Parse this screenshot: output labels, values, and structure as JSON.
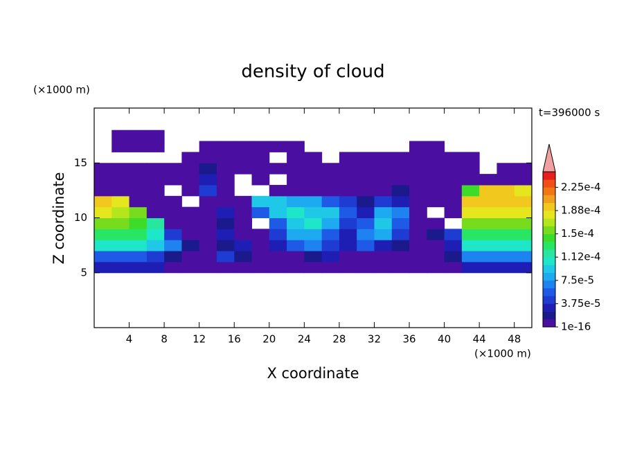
{
  "chart_data": {
    "type": "contour",
    "title": "density of cloud",
    "x_label": "X coordinate",
    "y_label": "Z coordinate",
    "x_unit": "(×1000 m)",
    "y_unit": "(×1000 m)",
    "time_label": "t=396000 s",
    "xlim": [
      0,
      50
    ],
    "ylim": [
      0,
      20
    ],
    "xticks": [
      4,
      8,
      12,
      16,
      20,
      24,
      28,
      32,
      36,
      40,
      44,
      48
    ],
    "yticks": [
      5,
      10,
      15
    ],
    "x": [
      1,
      3,
      5,
      7,
      9,
      11,
      13,
      15,
      17,
      19,
      21,
      23,
      25,
      27,
      29,
      31,
      33,
      35,
      37,
      39,
      41,
      43,
      45,
      47,
      49
    ],
    "z": [
      5.5,
      6.5,
      7.5,
      8.5,
      9.5,
      10.5,
      11.5,
      12.5,
      13.5,
      14.5,
      15.5,
      16.5,
      17.5
    ],
    "values": [
      [
        3e-05,
        3e-05,
        3e-05,
        3e-05,
        1e-05,
        5e-06,
        5e-06,
        5e-06,
        5e-06,
        5e-06,
        5e-06,
        5e-06,
        5e-06,
        5e-06,
        5e-06,
        5e-06,
        5e-06,
        5e-06,
        5e-06,
        5e-06,
        1e-05,
        3e-05,
        3e-05,
        3e-05,
        3e-05
      ],
      [
        6e-05,
        6e-05,
        6e-05,
        5e-05,
        2e-05,
        5e-06,
        5e-06,
        4e-05,
        2e-05,
        5e-06,
        5e-06,
        5e-06,
        2e-05,
        3e-05,
        5e-06,
        5e-06,
        5e-06,
        5e-06,
        5e-06,
        1e-05,
        2e-05,
        7e-05,
        7e-05,
        7e-05,
        7e-05
      ],
      [
        0.00011,
        0.00011,
        0.00011,
        9e-05,
        7e-05,
        2e-05,
        5e-06,
        2e-05,
        3e-05,
        5e-06,
        3e-05,
        6e-05,
        7e-05,
        4e-05,
        3e-05,
        6e-05,
        3e-05,
        2e-05,
        5e-06,
        5e-06,
        3e-05,
        0.00011,
        0.00011,
        0.00011,
        0.00011
      ],
      [
        0.000135,
        0.000135,
        0.00013,
        0.00011,
        4e-05,
        5e-06,
        5e-06,
        3e-05,
        5e-06,
        5e-06,
        4e-05,
        8e-05,
        8e-05,
        6e-05,
        3e-05,
        7e-05,
        8e-05,
        4e-05,
        5e-06,
        2e-05,
        4e-05,
        0.000135,
        0.000135,
        0.000135,
        0.000135
      ],
      [
        0.00016,
        0.000155,
        0.00015,
        0.00012,
        5e-06,
        5e-06,
        5e-06,
        2e-05,
        5e-06,
        null,
        6e-05,
        9e-05,
        0.000105,
        8e-05,
        5e-05,
        6e-05,
        9e-05,
        6e-05,
        5e-06,
        5e-06,
        null,
        0.00016,
        0.00016,
        0.00016,
        0.00016
      ],
      [
        0.00018,
        0.000175,
        0.00016,
        5e-06,
        5e-06,
        5e-06,
        5e-06,
        3e-05,
        5e-06,
        6e-05,
        9e-05,
        0.000105,
        0.0001,
        0.0001,
        6e-05,
        3e-05,
        8e-05,
        7e-05,
        5e-06,
        null,
        5e-06,
        0.000185,
        0.000185,
        0.000185,
        0.000185
      ],
      [
        0.00019,
        0.00018,
        5e-06,
        5e-06,
        5e-06,
        null,
        5e-06,
        5e-06,
        5e-06,
        0.0001,
        9e-05,
        8e-05,
        8e-05,
        6e-05,
        4e-05,
        2e-05,
        5e-05,
        3e-05,
        5e-06,
        5e-06,
        5e-06,
        0.000195,
        0.0002,
        0.000195,
        0.00019
      ],
      [
        5e-06,
        5e-06,
        5e-06,
        5e-06,
        null,
        5e-06,
        4e-05,
        5e-06,
        null,
        null,
        5e-06,
        5e-06,
        5e-06,
        5e-06,
        5e-06,
        5e-06,
        5e-06,
        2e-05,
        5e-06,
        5e-06,
        5e-06,
        0.00014,
        0.00019,
        0.00019,
        0.00018
      ],
      [
        5e-06,
        5e-06,
        5e-06,
        5e-06,
        5e-06,
        5e-06,
        3e-05,
        5e-06,
        null,
        5e-06,
        null,
        5e-06,
        5e-06,
        5e-06,
        5e-06,
        5e-06,
        5e-06,
        5e-06,
        5e-06,
        5e-06,
        5e-06,
        5e-06,
        5e-06,
        5e-06,
        5e-06
      ],
      [
        5e-06,
        5e-06,
        5e-06,
        5e-06,
        5e-06,
        5e-06,
        2e-05,
        5e-06,
        5e-06,
        5e-06,
        5e-06,
        5e-06,
        5e-06,
        5e-06,
        5e-06,
        5e-06,
        5e-06,
        5e-06,
        5e-06,
        5e-06,
        5e-06,
        5e-06,
        null,
        5e-06,
        5e-06
      ],
      [
        null,
        null,
        null,
        null,
        null,
        5e-06,
        5e-06,
        5e-06,
        5e-06,
        5e-06,
        null,
        5e-06,
        5e-06,
        null,
        5e-06,
        5e-06,
        5e-06,
        5e-06,
        5e-06,
        5e-06,
        5e-06,
        5e-06,
        null,
        null,
        null
      ],
      [
        null,
        5e-06,
        5e-06,
        5e-06,
        null,
        null,
        5e-06,
        5e-06,
        5e-06,
        5e-06,
        5e-06,
        5e-06,
        null,
        null,
        null,
        null,
        null,
        null,
        5e-06,
        5e-06,
        null,
        null,
        null,
        null,
        null
      ],
      [
        null,
        5e-06,
        5e-06,
        5e-06,
        null,
        null,
        null,
        null,
        null,
        null,
        null,
        null,
        null,
        null,
        null,
        null,
        null,
        null,
        null,
        null,
        null,
        null,
        null,
        null,
        null
      ]
    ],
    "clim": [
      1e-16,
      0.00025
    ],
    "colors": [
      "#4a0fa0",
      "#1a1a8c",
      "#1e1eb4",
      "#1e3cd2",
      "#1e5ae6",
      "#1e82f0",
      "#1eaaf0",
      "#1ec8e6",
      "#1ee6c8",
      "#28e6a0",
      "#28e664",
      "#3cdc28",
      "#78dc1e",
      "#b4e61e",
      "#e6e61e",
      "#f0c81e",
      "#f0a01e",
      "#f07814",
      "#f05014",
      "#e61e1e"
    ],
    "extend_color": "#f0a0a0",
    "cticks": [
      1e-16,
      {
        "value": 3.75e-05,
        "label": "3.75e-5"
      },
      {
        "value": 7.5e-05,
        "label": "7.5e-5"
      },
      {
        "value": 0.0001125,
        "label": "1.12e-4"
      },
      {
        "value": 0.00015,
        "label": "1.5e-4"
      },
      {
        "value": 0.0001875,
        "label": "1.88e-4"
      },
      {
        "value": 0.000225,
        "label": "2.25e-4"
      }
    ]
  }
}
